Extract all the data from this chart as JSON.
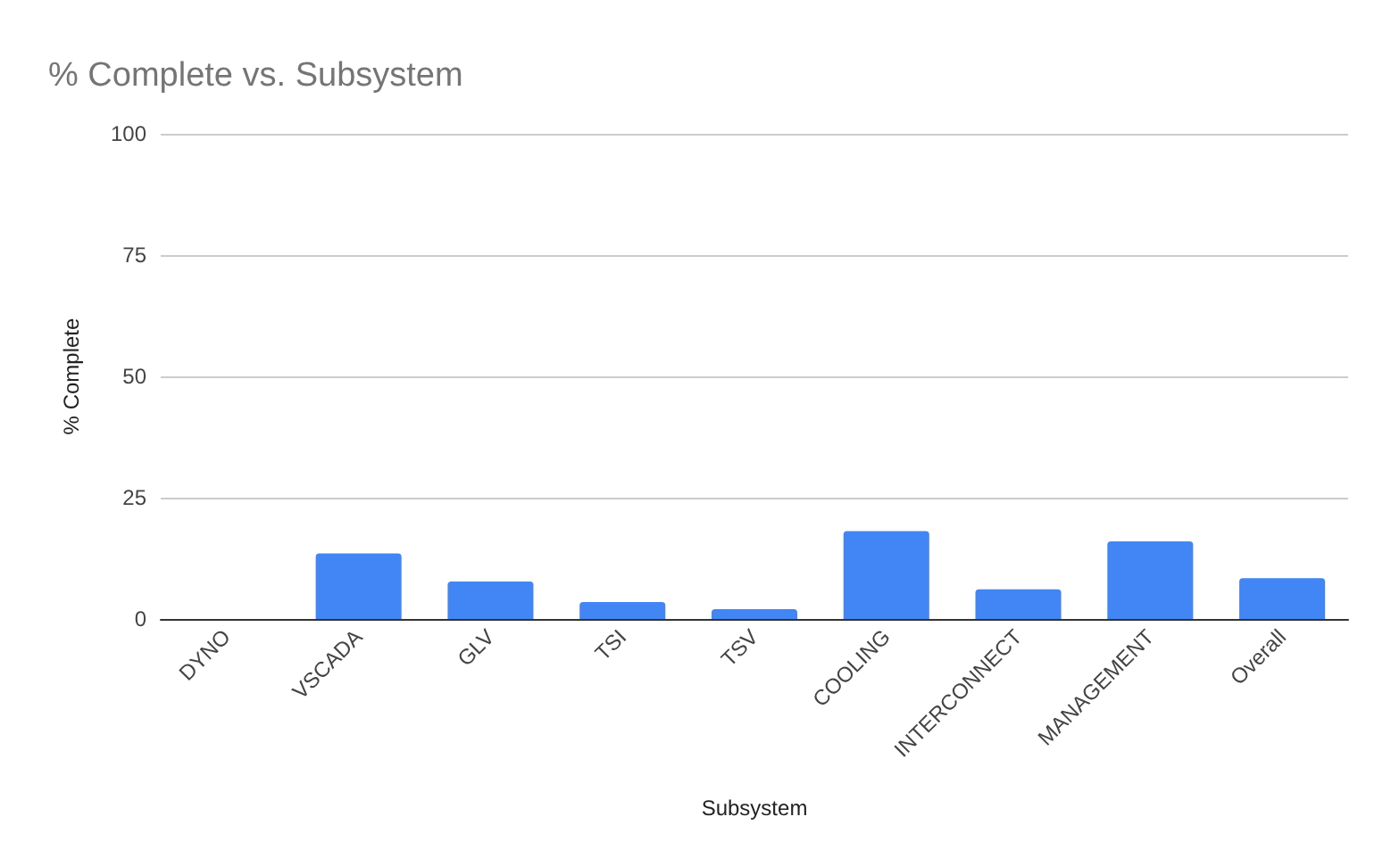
{
  "chart_data": {
    "type": "bar",
    "title": "% Complete vs. Subsystem",
    "xlabel": "Subsystem",
    "ylabel": "% Complete",
    "categories": [
      "DYNO",
      "VSCADA",
      "GLV",
      "TSI",
      "TSV",
      "COOLING",
      "INTERCONNECT",
      "MANAGEMENT",
      "Overall"
    ],
    "values": [
      0,
      13.5,
      7.7,
      3.5,
      2.0,
      18.1,
      6.1,
      16.0,
      8.4
    ],
    "color": "#4285f4",
    "ylim": [
      0,
      100
    ],
    "yticks": [
      0,
      25,
      50,
      75,
      100
    ],
    "grid": "y"
  }
}
